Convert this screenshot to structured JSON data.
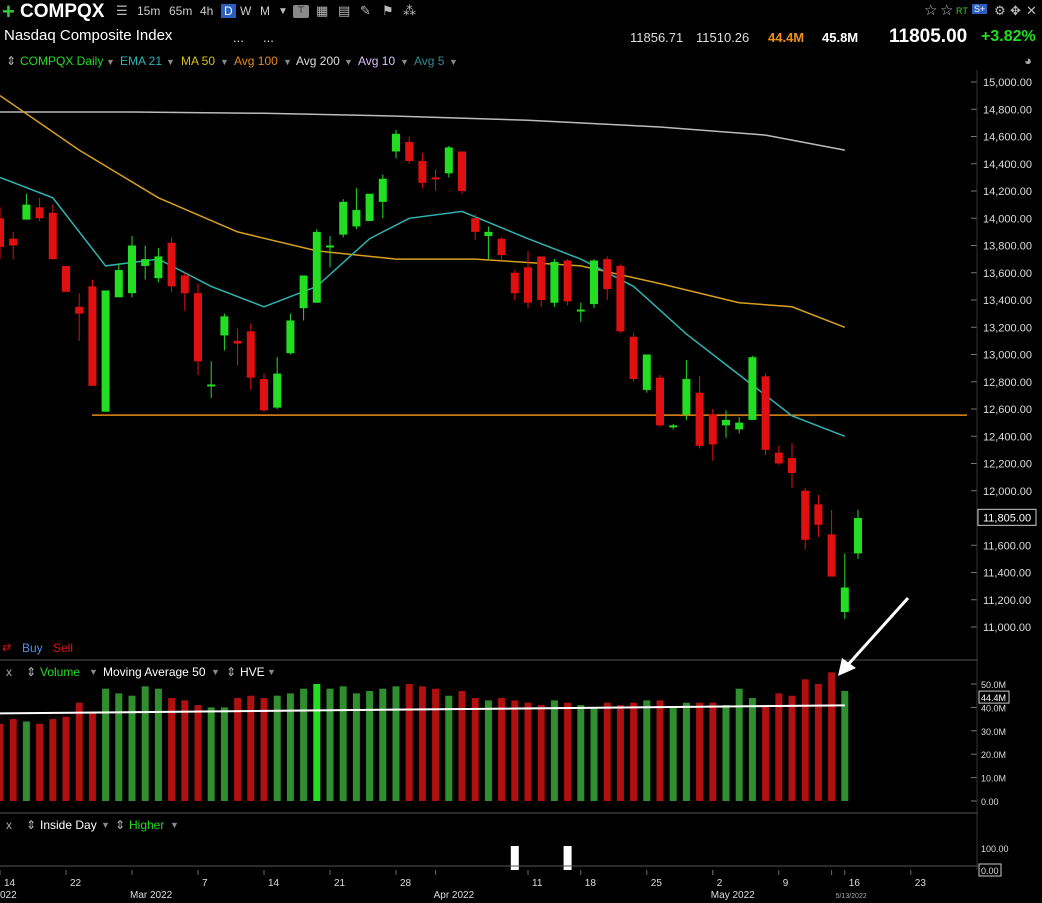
{
  "toolbar": {
    "symbol": "COMPQX",
    "timeframes": [
      "15m",
      "65m",
      "4h",
      "D",
      "W",
      "M"
    ],
    "selected_timeframe": "D",
    "right_labels": [
      "RT",
      "S+"
    ]
  },
  "header": {
    "name": "Nasdaq Composite Index",
    "dots1": "...",
    "dots2": "...",
    "high": "11856.71",
    "low": "11510.26",
    "vol1": "44.4M",
    "vol2": "45.8M",
    "last": "11805.00",
    "change": "+3.82%"
  },
  "indicators": {
    "symbol_label": "COMPQX Daily",
    "ema": "EMA 21",
    "ma50": "MA 50",
    "avg100": "Avg 100",
    "avg200": "Avg 200",
    "avg10": "Avg 10",
    "avg5": "Avg 5"
  },
  "buy_sell": {
    "buy": "Buy",
    "sell": "Sell"
  },
  "volume_panel": {
    "x": "x",
    "volume": "Volume",
    "ma": "Moving Average 50",
    "hve": "HVE"
  },
  "inside_panel": {
    "x": "x",
    "inside": "Inside Day",
    "higher": "Higher"
  },
  "price_axis": [
    "15,000.00",
    "14,800.00",
    "14,600.00",
    "14,400.00",
    "14,200.00",
    "14,000.00",
    "13,800.00",
    "13,600.00",
    "13,400.00",
    "13,200.00",
    "13,000.00",
    "12,800.00",
    "12,600.00",
    "12,400.00",
    "12,200.00",
    "12,000.00",
    "11,805.00",
    "11,600.00",
    "11,400.00",
    "11,200.00",
    "11,000.00"
  ],
  "price_tag": "11,805.00",
  "volume_axis": [
    "50.0M",
    "44.4M",
    "40.0M",
    "30.0M",
    "20.0M",
    "10.0M",
    "0.00"
  ],
  "inside_axis": [
    "100.00",
    "0.00"
  ],
  "date_axis": [
    {
      "label": "14",
      "day": 0
    },
    {
      "label": "22",
      "day": 5
    },
    {
      "label": "Mar 2022",
      "day": 10
    },
    {
      "label": "7",
      "day": 15
    },
    {
      "label": "14",
      "day": 20
    },
    {
      "label": "21",
      "day": 25
    },
    {
      "label": "28",
      "day": 30
    },
    {
      "label": "Apr 2022",
      "day": 33
    },
    {
      "label": "11",
      "day": 40
    },
    {
      "label": "18",
      "day": 44
    },
    {
      "label": "25",
      "day": 49
    },
    {
      "label": "2",
      "day": 54
    },
    {
      "label": "May 2022",
      "day": 54
    },
    {
      "label": "9",
      "day": 59
    },
    {
      "label": "5/13/2022",
      "day": 63
    },
    {
      "label": "16",
      "day": 64
    },
    {
      "label": "23",
      "day": 69
    }
  ],
  "year_left": "022",
  "colors": {
    "up": "#22dd22",
    "down": "#e01010",
    "ema": "#2fb3b3",
    "ma50": "#d8a020",
    "avg200": "#bbbbbb",
    "support": "#e88a1a",
    "vol_up": "#2f8f2f",
    "vol_up_hi": "#22dd22",
    "vol_down": "#b01010"
  },
  "chart_data": {
    "type": "candlestick",
    "support_level": 12555,
    "candles": [
      {
        "o": 14000,
        "h": 14080,
        "l": 13700,
        "c": 13790
      },
      {
        "o": 13850,
        "h": 13900,
        "l": 13700,
        "c": 13800
      },
      {
        "o": 13990,
        "h": 14180,
        "l": 13990,
        "c": 14100
      },
      {
        "o": 14080,
        "h": 14150,
        "l": 13980,
        "c": 14000
      },
      {
        "o": 14040,
        "h": 14100,
        "l": 13700,
        "c": 13700
      },
      {
        "o": 13650,
        "h": 13650,
        "l": 13460,
        "c": 13460
      },
      {
        "o": 13350,
        "h": 13450,
        "l": 13100,
        "c": 13300
      },
      {
        "o": 13500,
        "h": 13550,
        "l": 12770,
        "c": 12770
      },
      {
        "o": 12580,
        "h": 13470,
        "l": 12580,
        "c": 13470
      },
      {
        "o": 13420,
        "h": 13670,
        "l": 13420,
        "c": 13620
      },
      {
        "o": 13450,
        "h": 13870,
        "l": 13420,
        "c": 13800
      },
      {
        "o": 13650,
        "h": 13800,
        "l": 13550,
        "c": 13700
      },
      {
        "o": 13560,
        "h": 13780,
        "l": 13530,
        "c": 13720
      },
      {
        "o": 13820,
        "h": 13860,
        "l": 13460,
        "c": 13500
      },
      {
        "o": 13580,
        "h": 13600,
        "l": 13320,
        "c": 13450
      },
      {
        "o": 13450,
        "h": 13520,
        "l": 12850,
        "c": 12950
      },
      {
        "o": 12780,
        "h": 12950,
        "l": 12680,
        "c": 12780
      },
      {
        "o": 13140,
        "h": 13300,
        "l": 13030,
        "c": 13280
      },
      {
        "o": 13100,
        "h": 13190,
        "l": 12920,
        "c": 13080
      },
      {
        "o": 13170,
        "h": 13230,
        "l": 12740,
        "c": 12830
      },
      {
        "o": 12820,
        "h": 12860,
        "l": 12580,
        "c": 12590
      },
      {
        "o": 12610,
        "h": 12980,
        "l": 12600,
        "c": 12860
      },
      {
        "o": 13010,
        "h": 13300,
        "l": 13000,
        "c": 13250
      },
      {
        "o": 13340,
        "h": 13560,
        "l": 13250,
        "c": 13580
      },
      {
        "o": 13380,
        "h": 13920,
        "l": 13380,
        "c": 13900
      },
      {
        "o": 13790,
        "h": 13870,
        "l": 13640,
        "c": 13800
      },
      {
        "o": 13880,
        "h": 14140,
        "l": 13860,
        "c": 14120
      },
      {
        "o": 13940,
        "h": 14220,
        "l": 13920,
        "c": 14060
      },
      {
        "o": 13980,
        "h": 14170,
        "l": 13980,
        "c": 14180
      },
      {
        "o": 14120,
        "h": 14320,
        "l": 14000,
        "c": 14290
      },
      {
        "o": 14490,
        "h": 14650,
        "l": 14440,
        "c": 14620
      },
      {
        "o": 14560,
        "h": 14600,
        "l": 14400,
        "c": 14420
      },
      {
        "o": 14420,
        "h": 14480,
        "l": 14220,
        "c": 14260
      },
      {
        "o": 14300,
        "h": 14360,
        "l": 14200,
        "c": 14290
      },
      {
        "o": 14330,
        "h": 14530,
        "l": 14300,
        "c": 14520
      },
      {
        "o": 14490,
        "h": 14490,
        "l": 14180,
        "c": 14200
      },
      {
        "o": 14000,
        "h": 14030,
        "l": 13840,
        "c": 13900
      },
      {
        "o": 13870,
        "h": 13940,
        "l": 13700,
        "c": 13900
      },
      {
        "o": 13850,
        "h": 13860,
        "l": 13690,
        "c": 13730
      },
      {
        "o": 13600,
        "h": 13620,
        "l": 13400,
        "c": 13450
      },
      {
        "o": 13640,
        "h": 13760,
        "l": 13340,
        "c": 13380
      },
      {
        "o": 13720,
        "h": 13720,
        "l": 13350,
        "c": 13400
      },
      {
        "o": 13380,
        "h": 13700,
        "l": 13350,
        "c": 13680
      },
      {
        "o": 13690,
        "h": 13700,
        "l": 13360,
        "c": 13390
      },
      {
        "o": 13330,
        "h": 13380,
        "l": 13240,
        "c": 13330
      },
      {
        "o": 13370,
        "h": 13700,
        "l": 13340,
        "c": 13690
      },
      {
        "o": 13700,
        "h": 13720,
        "l": 13400,
        "c": 13480
      },
      {
        "o": 13650,
        "h": 13660,
        "l": 13160,
        "c": 13170
      },
      {
        "o": 13130,
        "h": 13160,
        "l": 12800,
        "c": 12820
      },
      {
        "o": 12740,
        "h": 13000,
        "l": 12720,
        "c": 13000
      },
      {
        "o": 12830,
        "h": 12850,
        "l": 12470,
        "c": 12480
      },
      {
        "o": 12480,
        "h": 12490,
        "l": 12450,
        "c": 12480
      },
      {
        "o": 12560,
        "h": 12960,
        "l": 12520,
        "c": 12820
      },
      {
        "o": 12720,
        "h": 12840,
        "l": 12310,
        "c": 12330
      },
      {
        "o": 12560,
        "h": 12600,
        "l": 12220,
        "c": 12340
      },
      {
        "o": 12480,
        "h": 12590,
        "l": 12390,
        "c": 12520
      },
      {
        "o": 12450,
        "h": 12540,
        "l": 12420,
        "c": 12500
      },
      {
        "o": 12520,
        "h": 12990,
        "l": 12520,
        "c": 12980
      },
      {
        "o": 12840,
        "h": 12860,
        "l": 12260,
        "c": 12300
      },
      {
        "o": 12280,
        "h": 12330,
        "l": 12190,
        "c": 12200
      },
      {
        "o": 12240,
        "h": 12350,
        "l": 12020,
        "c": 12130
      },
      {
        "o": 12000,
        "h": 12020,
        "l": 11570,
        "c": 11640
      },
      {
        "o": 11900,
        "h": 11970,
        "l": 11660,
        "c": 11750
      },
      {
        "o": 11680,
        "h": 11860,
        "l": 11380,
        "c": 11370
      },
      {
        "o": 11110,
        "h": 11540,
        "l": 11060,
        "c": 11290
      },
      {
        "o": 11540,
        "h": 11860,
        "l": 11500,
        "c": 11800
      }
    ],
    "ema21": [
      [
        0,
        14300
      ],
      [
        4,
        14150
      ],
      [
        8,
        13650
      ],
      [
        12,
        13700
      ],
      [
        16,
        13500
      ],
      [
        20,
        13350
      ],
      [
        24,
        13500
      ],
      [
        28,
        13850
      ],
      [
        31,
        14000
      ],
      [
        35,
        14050
      ],
      [
        40,
        13850
      ],
      [
        44,
        13700
      ],
      [
        48,
        13500
      ],
      [
        52,
        13150
      ],
      [
        56,
        12850
      ],
      [
        60,
        12550
      ],
      [
        64,
        12400
      ]
    ],
    "ma50": [
      [
        0,
        14900
      ],
      [
        6,
        14500
      ],
      [
        12,
        14150
      ],
      [
        18,
        13900
      ],
      [
        24,
        13760
      ],
      [
        30,
        13700
      ],
      [
        36,
        13700
      ],
      [
        44,
        13650
      ],
      [
        50,
        13520
      ],
      [
        56,
        13380
      ],
      [
        60,
        13350
      ],
      [
        64,
        13200
      ]
    ],
    "avg200": [
      [
        0,
        14780
      ],
      [
        10,
        14780
      ],
      [
        20,
        14770
      ],
      [
        30,
        14750
      ],
      [
        40,
        14720
      ],
      [
        50,
        14670
      ],
      [
        58,
        14610
      ],
      [
        64,
        14500
      ]
    ],
    "volume": [
      33,
      35,
      34,
      33,
      35,
      36,
      42,
      38,
      48,
      46,
      45,
      49,
      48,
      44,
      43,
      41,
      40,
      40,
      44,
      45,
      44,
      45,
      46,
      48,
      50,
      48,
      49,
      46,
      47,
      48,
      49,
      50,
      49,
      48,
      45,
      47,
      44,
      43,
      44,
      43,
      42,
      41,
      43,
      42,
      41,
      40,
      42,
      41,
      42,
      43,
      43,
      40,
      42,
      42,
      42,
      41,
      48,
      44,
      41,
      46,
      45,
      52,
      50,
      55,
      47
    ],
    "volume_ma50": 40,
    "inside_days": [
      39,
      43
    ]
  }
}
